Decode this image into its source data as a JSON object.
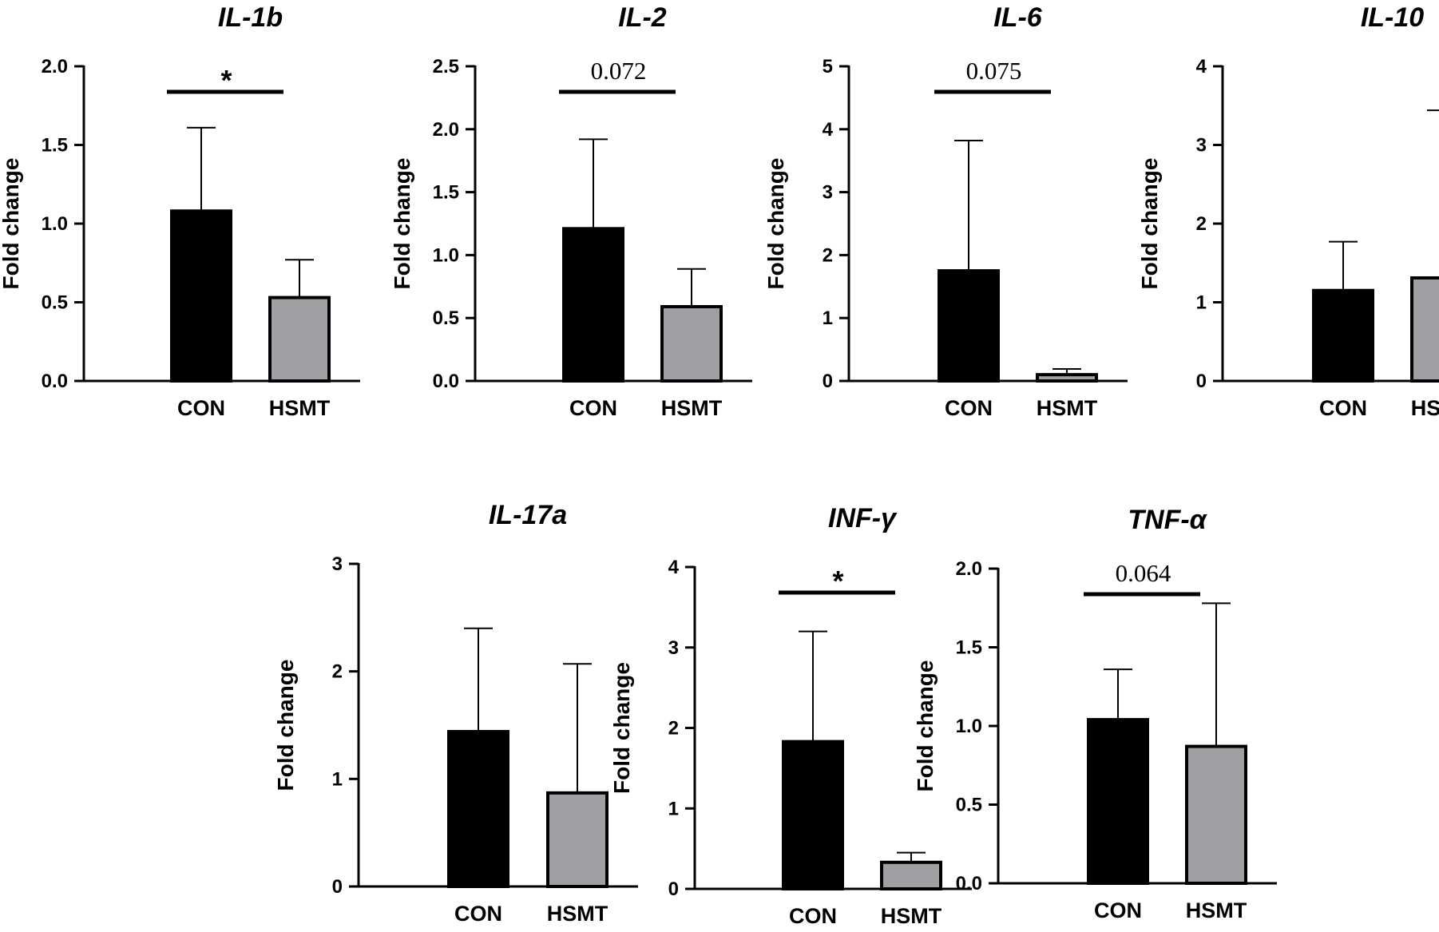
{
  "chart_data": [
    {
      "type": "bar",
      "title": "IL-1b",
      "ylabel": "Fold change",
      "categories": [
        "CON",
        "HSMT"
      ],
      "values": [
        1.08,
        0.53
      ],
      "errors": [
        0.53,
        0.24
      ],
      "colors": [
        "#000000",
        "#a0a0a4"
      ],
      "ylim": [
        0,
        2.0
      ],
      "ticks": [
        0.0,
        0.5,
        1.0,
        1.5,
        2.0
      ],
      "tick_labels": [
        "0.0",
        "0.5",
        "1.0",
        "1.5",
        "2.0"
      ],
      "significance": "*"
    },
    {
      "type": "bar",
      "title": "IL-2",
      "ylabel": "Fold change",
      "categories": [
        "CON",
        "HSMT"
      ],
      "values": [
        1.21,
        0.59
      ],
      "errors": [
        0.71,
        0.3
      ],
      "colors": [
        "#000000",
        "#a0a0a4"
      ],
      "ylim": [
        0,
        2.5
      ],
      "ticks": [
        0.0,
        0.5,
        1.0,
        1.5,
        2.0,
        2.5
      ],
      "tick_labels": [
        "0.0",
        "0.5",
        "1.0",
        "1.5",
        "2.0",
        "2.5"
      ],
      "significance": "0.072"
    },
    {
      "type": "bar",
      "title": "IL-6",
      "ylabel": "Fold change",
      "categories": [
        "CON",
        "HSMT"
      ],
      "values": [
        1.75,
        0.1
      ],
      "errors": [
        2.07,
        0.09
      ],
      "colors": [
        "#000000",
        "#a0a0a4"
      ],
      "ylim": [
        0,
        5
      ],
      "ticks": [
        0,
        1,
        2,
        3,
        4,
        5
      ],
      "tick_labels": [
        "0",
        "1",
        "2",
        "3",
        "4",
        "5"
      ],
      "significance": "0.075"
    },
    {
      "type": "bar",
      "title": "IL-10",
      "ylabel": "Fold change",
      "categories": [
        "CON",
        "HSMT"
      ],
      "values": [
        1.15,
        1.31
      ],
      "errors": [
        0.62,
        2.13
      ],
      "colors": [
        "#000000",
        "#a0a0a4"
      ],
      "ylim": [
        0,
        4
      ],
      "ticks": [
        0,
        1,
        2,
        3,
        4
      ],
      "tick_labels": [
        "0",
        "1",
        "2",
        "3",
        "4"
      ],
      "significance": ""
    },
    {
      "type": "bar",
      "title": "IL-17a",
      "ylabel": "Fold change",
      "categories": [
        "CON",
        "HSMT"
      ],
      "values": [
        1.44,
        0.87
      ],
      "errors": [
        0.96,
        1.2
      ],
      "colors": [
        "#000000",
        "#a0a0a4"
      ],
      "ylim": [
        0,
        3
      ],
      "ticks": [
        0,
        1,
        2,
        3
      ],
      "tick_labels": [
        "0",
        "1",
        "2",
        "3"
      ],
      "significance": ""
    },
    {
      "type": "bar",
      "title": "INF-γ",
      "ylabel": "Fold change",
      "categories": [
        "CON",
        "HSMT"
      ],
      "values": [
        1.83,
        0.33
      ],
      "errors": [
        1.37,
        0.12
      ],
      "colors": [
        "#000000",
        "#a0a0a4"
      ],
      "ylim": [
        0,
        4
      ],
      "ticks": [
        0,
        1,
        2,
        3,
        4
      ],
      "tick_labels": [
        "0",
        "1",
        "2",
        "3",
        "4"
      ],
      "significance": "*"
    },
    {
      "type": "bar",
      "title": "TNF-α",
      "ylabel": "Fold change",
      "categories": [
        "CON",
        "HSMT"
      ],
      "values": [
        1.04,
        0.87
      ],
      "errors": [
        0.32,
        0.91
      ],
      "colors": [
        "#000000",
        "#a0a0a4"
      ],
      "ylim": [
        0,
        2.0
      ],
      "ticks": [
        0.0,
        0.5,
        1.0,
        1.5,
        2.0
      ],
      "tick_labels": [
        "0.0",
        "0.5",
        "1.0",
        "1.5",
        "2.0"
      ],
      "significance": "0.064"
    }
  ]
}
